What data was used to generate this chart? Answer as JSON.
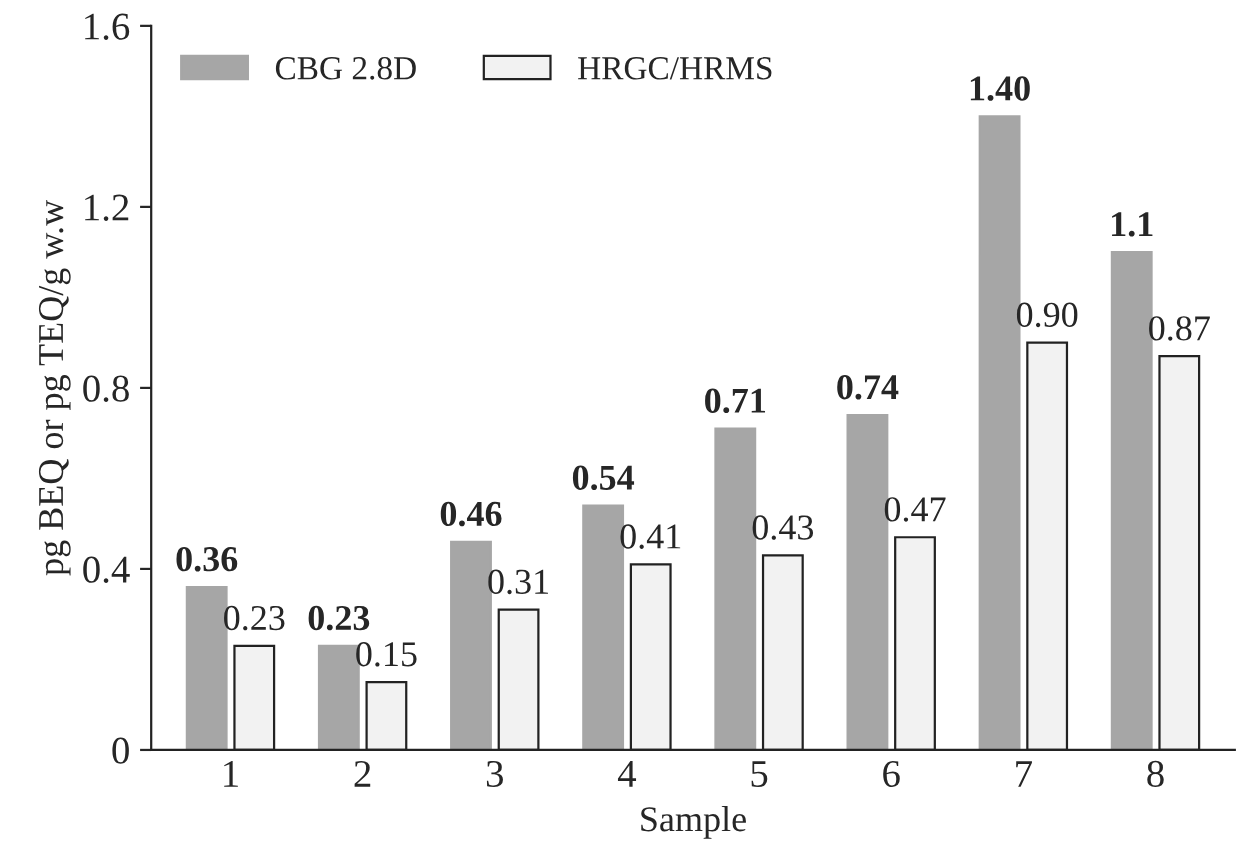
{
  "chart_data": {
    "type": "bar",
    "xlabel": "Sample",
    "ylabel": "pg BEQ or pg TEQ/g w.w",
    "categories": [
      "1",
      "2",
      "3",
      "4",
      "5",
      "6",
      "7",
      "8"
    ],
    "series": [
      {
        "name": "CBG 2.8D",
        "color": "#a6a6a6",
        "values": [
          0.36,
          0.23,
          0.46,
          0.54,
          0.71,
          0.74,
          1.4,
          1.1
        ],
        "value_labels": [
          "0.36",
          "0.23",
          "0.46",
          "0.54",
          "0.71",
          "0.74",
          "1.40",
          "1.1"
        ]
      },
      {
        "name": "HRGC/HRMS",
        "color": "#f2f2f2",
        "values": [
          0.23,
          0.15,
          0.31,
          0.41,
          0.43,
          0.47,
          0.9,
          0.87
        ],
        "value_labels": [
          "0.23",
          "0.15",
          "0.31",
          "0.41",
          "0.43",
          "0.47",
          "0.90",
          "0.87"
        ]
      }
    ],
    "ylim": [
      0,
      1.6
    ],
    "yticks": [
      {
        "value": 0,
        "label": "0"
      },
      0.4,
      0.8,
      1.2,
      1.6
    ],
    "legend": "top left",
    "grid": false
  }
}
